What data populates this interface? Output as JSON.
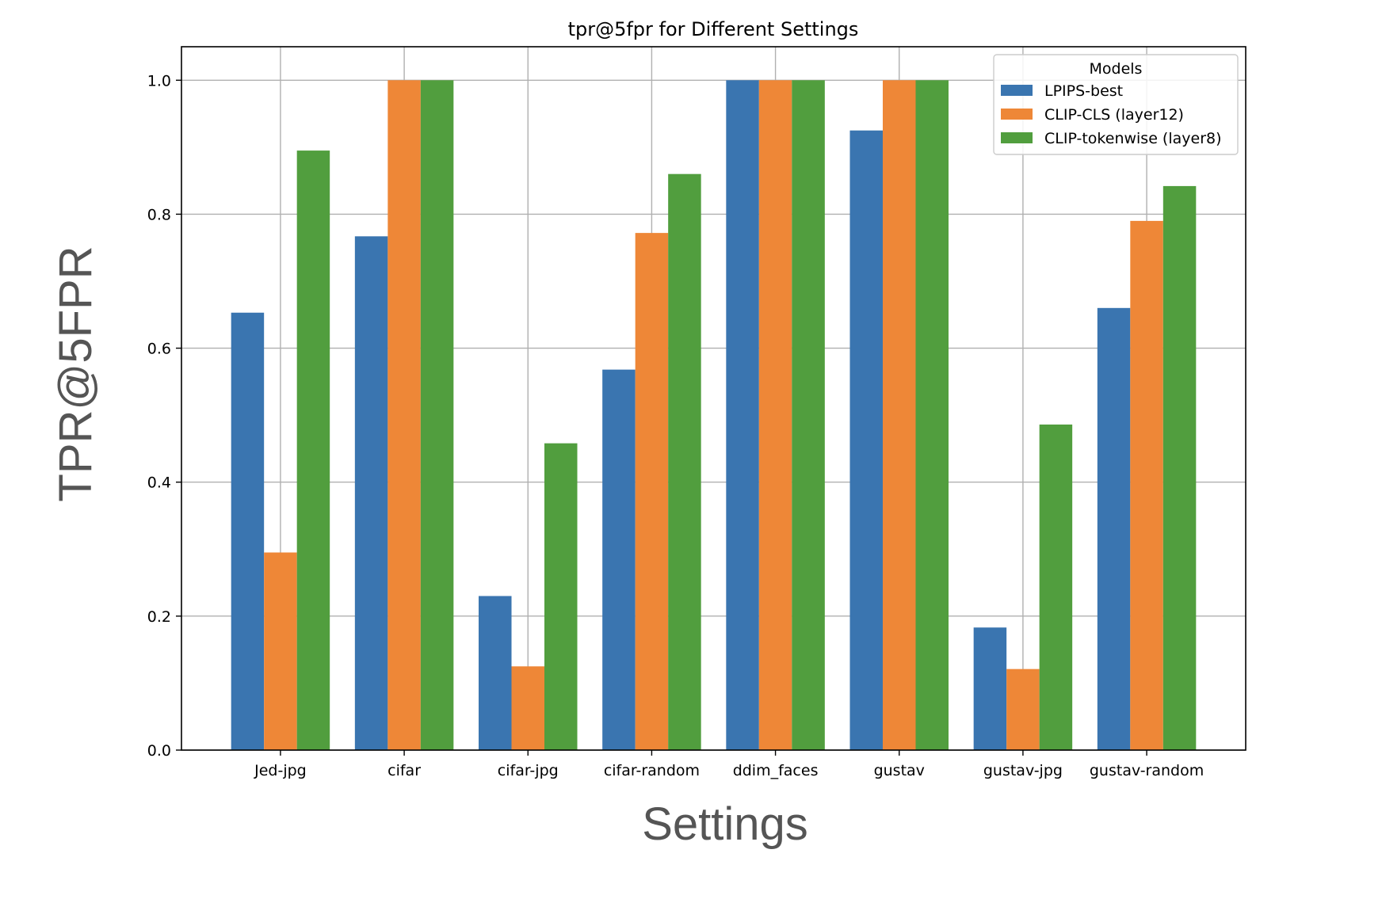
{
  "chart_data": {
    "type": "bar",
    "title": "tpr@5fpr for Different Settings",
    "xlabel": "Settings",
    "ylabel": "TPR@5FPR",
    "categories": [
      "Jed-jpg",
      "cifar",
      "cifar-jpg",
      "cifar-random",
      "ddim_faces",
      "gustav",
      "gustav-jpg",
      "gustav-random"
    ],
    "series": [
      {
        "name": "LPIPS-best",
        "color": "#3a75b0",
        "values": [
          0.653,
          0.767,
          0.23,
          0.568,
          1.0,
          0.925,
          0.183,
          0.66
        ]
      },
      {
        "name": "CLIP-CLS (layer12)",
        "color": "#ee8737",
        "values": [
          0.295,
          1.0,
          0.125,
          0.772,
          1.0,
          1.0,
          0.121,
          0.79
        ]
      },
      {
        "name": "CLIP-tokenwise (layer8)",
        "color": "#519e3e",
        "values": [
          0.895,
          1.0,
          0.458,
          0.86,
          1.0,
          1.0,
          0.486,
          0.842
        ]
      }
    ],
    "ylim": [
      0,
      1.05
    ],
    "yticks": [
      "0.0",
      "0.2",
      "0.4",
      "0.6",
      "0.8",
      "1.0"
    ],
    "ytick_values": [
      0,
      0.2,
      0.4,
      0.6,
      0.8,
      1.0
    ],
    "grid": true,
    "legend": {
      "title": "Models",
      "position": "top-right"
    }
  }
}
